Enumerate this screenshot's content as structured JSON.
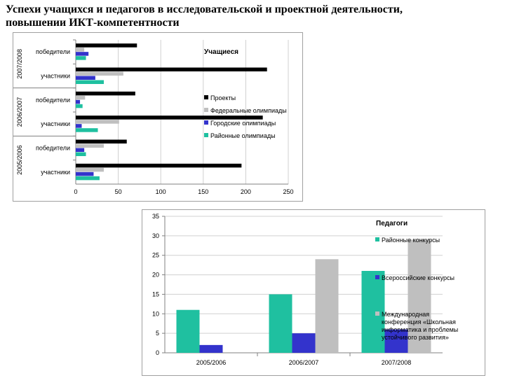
{
  "title": "Успехи учащихся и педагогов в исследовательской и проектной деятельности, повышении ИКТ-компетентности",
  "colors": {
    "projects": "#000000",
    "federal": "#bfbfbf",
    "city": "#3333cc",
    "district": "#1fc0a0"
  },
  "chart_data": [
    {
      "type": "bar",
      "orientation": "horizontal",
      "title": "Учащиеся",
      "groups": [
        {
          "label": "2007/2008",
          "rows": [
            {
              "label": "победители",
              "values": [
                72,
                10,
                15,
                12
              ]
            },
            {
              "label": "участники",
              "values": [
                225,
                56,
                23,
                33
              ]
            }
          ]
        },
        {
          "label": "2006/2007",
          "rows": [
            {
              "label": "победители",
              "values": [
                70,
                11,
                5,
                8
              ]
            },
            {
              "label": "участники",
              "values": [
                220,
                51,
                7,
                26
              ]
            }
          ]
        },
        {
          "label": "2005/2006",
          "rows": [
            {
              "label": "победители",
              "values": [
                60,
                33,
                10,
                12
              ]
            },
            {
              "label": "участники",
              "values": [
                195,
                33,
                21,
                28
              ]
            }
          ]
        }
      ],
      "series": [
        "Проекты",
        "Федеральные олимпиады",
        "Городские олимпиады",
        "Районные олимпиады"
      ],
      "xlim": [
        0,
        250
      ],
      "xticks": [
        0,
        50,
        100,
        150,
        200,
        250
      ],
      "legend": "right"
    },
    {
      "type": "bar",
      "title": "Педагоги",
      "categories": [
        "2005/2006",
        "2006/2007",
        "2007/2008"
      ],
      "series": [
        {
          "name": "Районные конкурсы",
          "values": [
            11,
            15,
            21
          ]
        },
        {
          "name": "Всероссийские конкурсы",
          "values": [
            2,
            5,
            6
          ]
        },
        {
          "name": "Международная конференция «Школьная информатика и проблемы устойчивого развития»",
          "values": [
            0,
            24,
            29
          ]
        }
      ],
      "ylim": [
        0,
        35
      ],
      "yticks": [
        0,
        5,
        10,
        15,
        20,
        25,
        30,
        35
      ],
      "legend": "right"
    }
  ]
}
